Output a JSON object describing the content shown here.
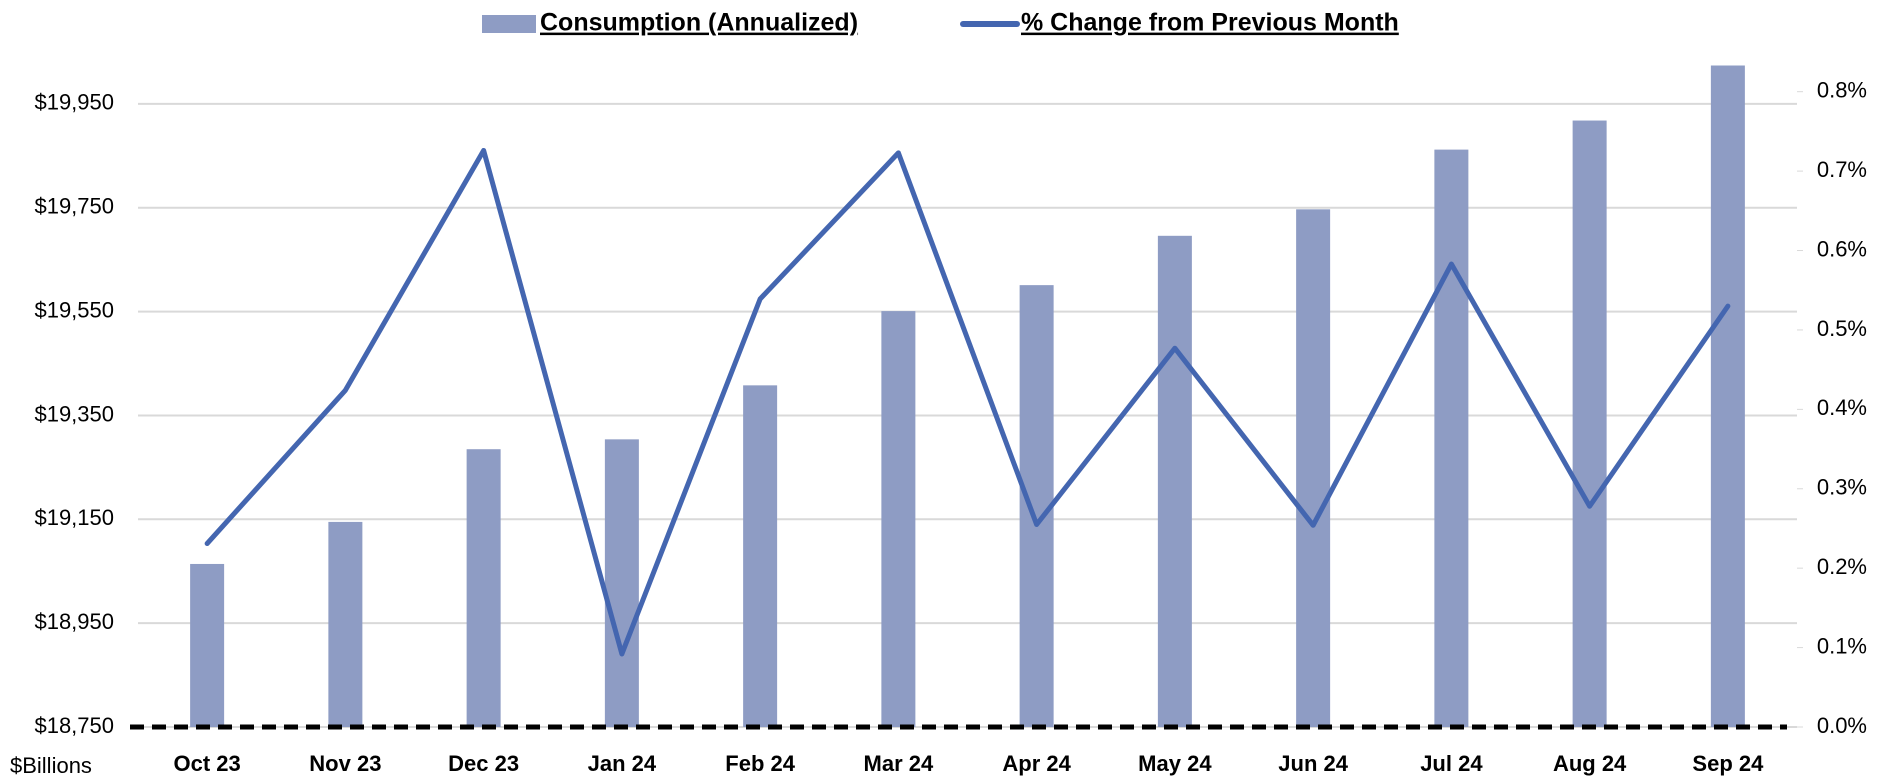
{
  "chart_data": {
    "type": "bar_line",
    "y_label": "$Billions",
    "categories": [
      "Oct 23",
      "Nov 23",
      "Dec 23",
      "Jan 24",
      "Feb 24",
      "Mar 24",
      "Apr 24",
      "May 24",
      "Jun 24",
      "Jul 24",
      "Aug 24",
      "Sep 24"
    ],
    "series": [
      {
        "name": "Consumption (Annualized)",
        "type": "bar",
        "color": "#8e9cc4",
        "values": [
          19064,
          19145,
          19285,
          19304,
          19408,
          19551,
          19601,
          19696,
          19747,
          19862,
          19918,
          20024
        ]
      },
      {
        "name": "% Change from Previous Month",
        "type": "line",
        "axis": "y2",
        "color": "#4466b0",
        "values": [
          0.231,
          0.424,
          0.726,
          0.092,
          0.539,
          0.723,
          0.255,
          0.477,
          0.254,
          0.583,
          0.278,
          0.53
        ]
      }
    ],
    "ylim": [
      18750,
      20050
    ],
    "yticks": [
      {
        "value": 18750,
        "label": "$18,750"
      },
      {
        "value": 18950,
        "label": "$18,950"
      },
      {
        "value": 19150,
        "label": "$19,150"
      },
      {
        "value": 19350,
        "label": "$19,350"
      },
      {
        "value": 19550,
        "label": "$19,550"
      },
      {
        "value": 19750,
        "label": "$19,750"
      },
      {
        "value": 19950,
        "label": "$19,950"
      }
    ],
    "y2lim": [
      0,
      0.85
    ],
    "y2ticks": [
      {
        "value": 0,
        "label": "0.0%"
      },
      {
        "value": 0.1,
        "label": "0.1%"
      },
      {
        "value": 0.2,
        "label": "0.2%"
      },
      {
        "value": 0.3,
        "label": "0.3%"
      },
      {
        "value": 0.4,
        "label": "0.4%"
      },
      {
        "value": 0.5,
        "label": "0.5%"
      },
      {
        "value": 0.6,
        "label": "0.6%"
      },
      {
        "value": 0.7,
        "label": "0.7%"
      },
      {
        "value": 0.8,
        "label": "0.8%"
      }
    ],
    "grid": true,
    "legend": "top"
  }
}
